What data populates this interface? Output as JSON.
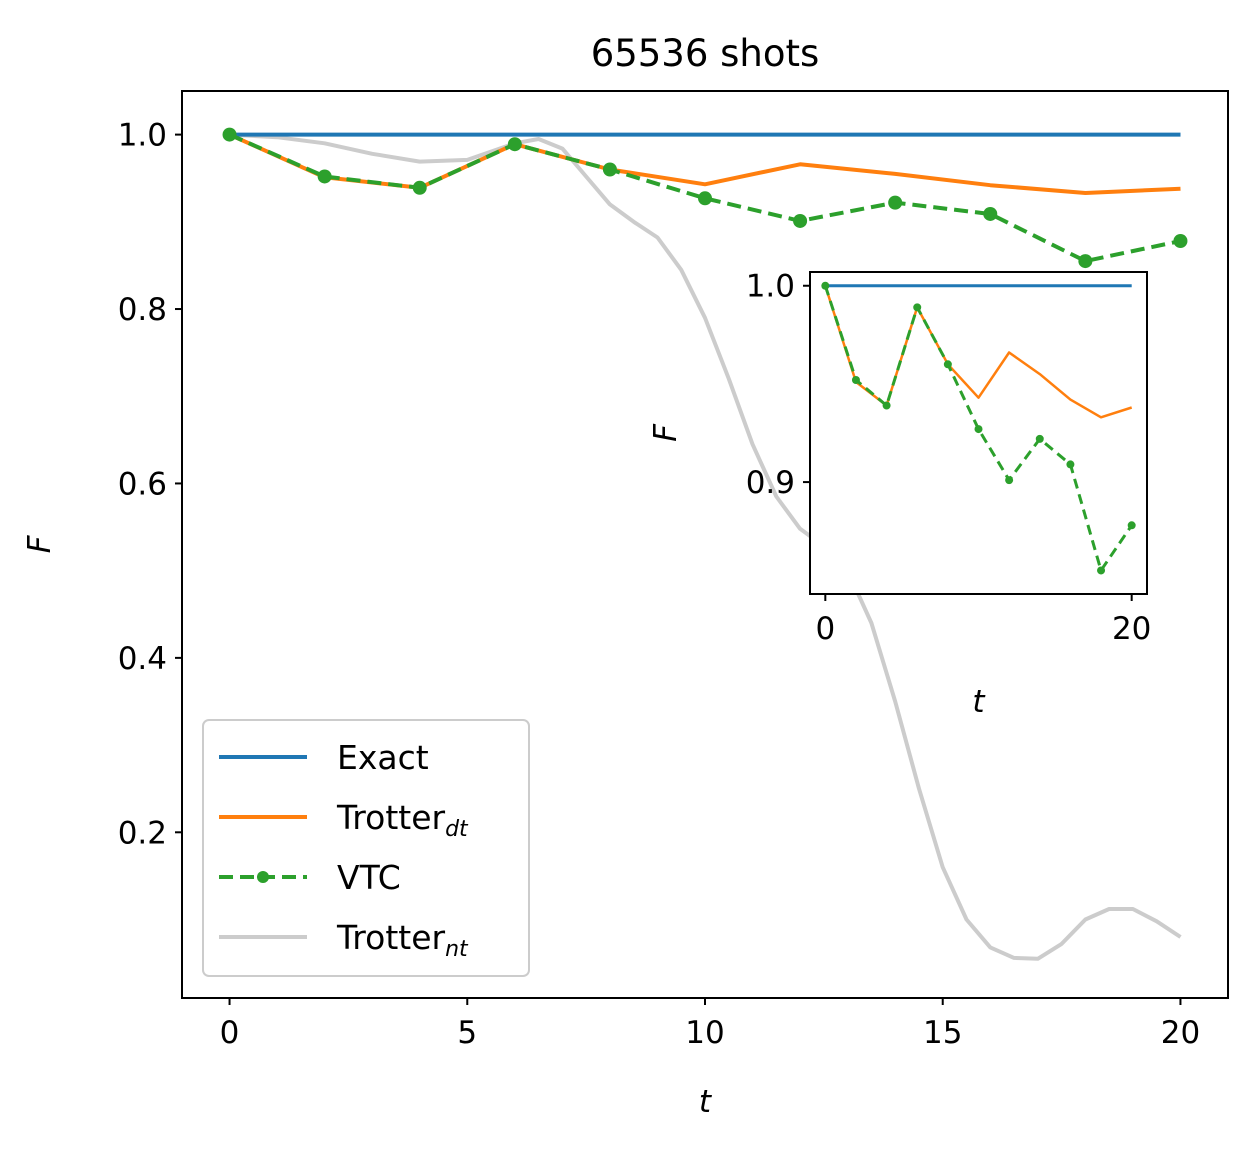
{
  "chart_data": [
    {
      "type": "line",
      "title": "65536 shots",
      "xlabel": "t",
      "ylabel": "F",
      "xlim": [
        -1,
        21
      ],
      "ylim": [
        0.01,
        1.05
      ],
      "xticks": [
        0,
        5,
        10,
        15,
        20
      ],
      "xtick_labels": [
        "0",
        "5",
        "10",
        "15",
        "20"
      ],
      "yticks": [
        0.2,
        0.4,
        0.6,
        0.8,
        1.0
      ],
      "ytick_labels": [
        "0.2",
        "0.4",
        "0.6",
        "0.8",
        "1.0"
      ],
      "grid": false,
      "legend_position": "lower-left",
      "series": [
        {
          "name": "Exact",
          "name_sub": "",
          "color": "#1f77b4",
          "style": "solid",
          "x": [
            0,
            20
          ],
          "y": [
            1.0,
            1.0
          ]
        },
        {
          "name": "Trotter",
          "name_sub": "dt",
          "color": "#ff7f0e",
          "style": "solid",
          "x": [
            0,
            2,
            4,
            6,
            8,
            10,
            12,
            14,
            16,
            18,
            20
          ],
          "y": [
            1.0,
            0.951,
            0.939,
            0.989,
            0.96,
            0.943,
            0.966,
            0.955,
            0.942,
            0.933,
            0.938
          ]
        },
        {
          "name": "VTC",
          "name_sub": "",
          "color": "#2ca02c",
          "style": "dashed-markers",
          "x": [
            0,
            2,
            4,
            6,
            8,
            10,
            12,
            14,
            16,
            18,
            20
          ],
          "y": [
            1.0,
            0.952,
            0.939,
            0.989,
            0.96,
            0.927,
            0.901,
            0.922,
            0.909,
            0.855,
            0.878
          ]
        },
        {
          "name": "Trotter",
          "name_sub": "nt",
          "color": "#cccccc",
          "style": "solid",
          "x": [
            0,
            1,
            2,
            3,
            4,
            5,
            6,
            6.5,
            7,
            7.5,
            8,
            8.5,
            9,
            9.5,
            10,
            10.5,
            11,
            11.5,
            12,
            12.5,
            13,
            13.5,
            14,
            14.5,
            15,
            15.5,
            16,
            16.5,
            17,
            17.5,
            18,
            18.5,
            19,
            19.5,
            20
          ],
          "y": [
            1.0,
            0.997,
            0.99,
            0.978,
            0.969,
            0.971,
            0.99,
            0.995,
            0.984,
            0.952,
            0.92,
            0.9,
            0.882,
            0.845,
            0.79,
            0.72,
            0.645,
            0.585,
            0.548,
            0.528,
            0.5,
            0.44,
            0.35,
            0.25,
            0.16,
            0.1,
            0.068,
            0.056,
            0.055,
            0.072,
            0.1,
            0.112,
            0.112,
            0.098,
            0.08
          ]
        }
      ]
    },
    {
      "type": "line",
      "title": "",
      "xlabel": "t",
      "ylabel": "F",
      "xlim": [
        -1,
        21
      ],
      "ylim": [
        0.843,
        1.007
      ],
      "xticks": [
        0,
        20
      ],
      "xtick_labels": [
        "0",
        "20"
      ],
      "yticks": [
        0.9,
        1.0
      ],
      "ytick_labels": [
        "0.9",
        "1.0"
      ],
      "grid": false,
      "position": "inset-right",
      "series": [
        {
          "name": "Exact",
          "color": "#1f77b4",
          "style": "solid",
          "x": [
            0,
            20
          ],
          "y": [
            1.0,
            1.0
          ]
        },
        {
          "name": "Trotter",
          "color": "#ff7f0e",
          "style": "solid",
          "x": [
            0,
            2,
            4,
            6,
            8,
            10,
            12,
            14,
            16,
            18,
            20
          ],
          "y": [
            1.0,
            0.951,
            0.939,
            0.989,
            0.96,
            0.943,
            0.966,
            0.955,
            0.942,
            0.933,
            0.938
          ]
        },
        {
          "name": "VTC",
          "color": "#2ca02c",
          "style": "dashed-markers",
          "x": [
            0,
            2,
            4,
            6,
            8,
            10,
            12,
            14,
            16,
            18,
            20
          ],
          "y": [
            1.0,
            0.952,
            0.939,
            0.989,
            0.96,
            0.927,
            0.901,
            0.922,
            0.909,
            0.855,
            0.878
          ]
        }
      ]
    }
  ]
}
